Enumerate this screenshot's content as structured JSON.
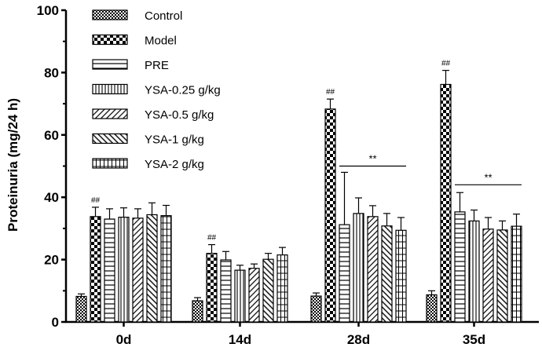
{
  "chart_data": {
    "type": "bar",
    "ylabel": "Proteinuria (mg/24 h)",
    "xlabel": "",
    "title": "",
    "ylim": [
      0,
      100
    ],
    "yticks": [
      0,
      20,
      40,
      60,
      80,
      100
    ],
    "categories": [
      "0d",
      "14d",
      "28d",
      "35d"
    ],
    "legend": {
      "placement": "top-left",
      "columns": 1
    },
    "grid": false,
    "series": [
      {
        "name": "Control",
        "pattern": "checker-fine",
        "values": [
          8.2,
          6.8,
          8.3,
          8.7
        ],
        "errors": [
          0.8,
          1.0,
          1.0,
          1.3
        ]
      },
      {
        "name": "Model",
        "pattern": "checker-coarse",
        "values": [
          33.8,
          22.0,
          68.3,
          76.2
        ],
        "errors": [
          3.0,
          2.8,
          3.2,
          4.5
        ]
      },
      {
        "name": "PRE",
        "pattern": "horizontal",
        "values": [
          33.0,
          19.9,
          31.2,
          35.3
        ],
        "errors": [
          3.3,
          2.7,
          16.8,
          6.2
        ]
      },
      {
        "name": "YSA-0.25 g/kg",
        "pattern": "vertical",
        "values": [
          33.6,
          16.6,
          34.8,
          32.4
        ],
        "errors": [
          3.0,
          1.6,
          5.0,
          3.5
        ]
      },
      {
        "name": "YSA-0.5 g/kg",
        "pattern": "diag-up",
        "values": [
          33.3,
          17.2,
          33.8,
          29.8
        ],
        "errors": [
          3.0,
          1.4,
          3.5,
          3.7
        ]
      },
      {
        "name": "YSA-1 g/kg",
        "pattern": "diag-down",
        "values": [
          34.4,
          20.1,
          30.8,
          29.5
        ],
        "errors": [
          3.8,
          1.9,
          4.0,
          2.9
        ]
      },
      {
        "name": "YSA-2 g/kg",
        "pattern": "grid",
        "values": [
          34.1,
          21.5,
          29.4,
          30.7
        ],
        "errors": [
          3.3,
          2.4,
          4.1,
          3.9
        ]
      }
    ],
    "annotations": [
      {
        "text": "##",
        "category": "0d",
        "series": "Model"
      },
      {
        "text": "##",
        "category": "14d",
        "series": "Model"
      },
      {
        "text": "##",
        "category": "28d",
        "series": "Model"
      },
      {
        "text": "##",
        "category": "35d",
        "series": "Model"
      },
      {
        "text": "**",
        "category": "28d",
        "series_from": "PRE",
        "series_to": "YSA-2 g/kg",
        "y": 50
      },
      {
        "text": "**",
        "category": "35d",
        "series_from": "PRE",
        "series_to": "YSA-2 g/kg",
        "y": 44
      }
    ]
  }
}
